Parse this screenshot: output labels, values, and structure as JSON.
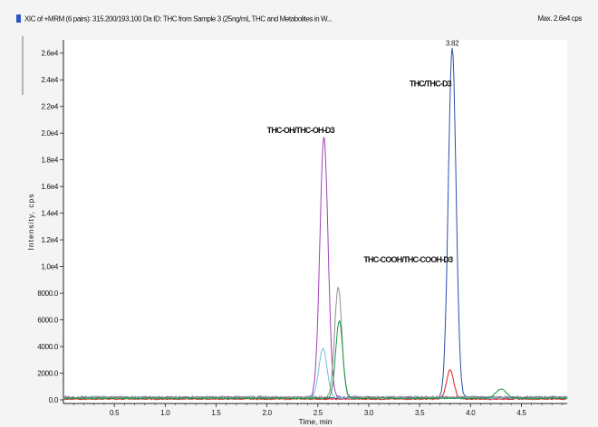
{
  "header": {
    "title": "XIC of +MRM (6 pairs): 315.200/193.100 Da ID: THC from Sample 3 (25ng/mL THC and Metabolites in W...",
    "max_label": "Max. 2.6e4 cps"
  },
  "chart_data": {
    "type": "line",
    "xlabel": "Time, min",
    "ylabel": "Intensity, cps",
    "xlim": [
      0.0,
      5.0
    ],
    "ylim": [
      0,
      27000
    ],
    "x_ticks": [
      0.5,
      1.0,
      1.5,
      2.0,
      2.5,
      3.0,
      3.5,
      4.0,
      4.5
    ],
    "x_tick_labels": [
      "0.5",
      "1.0",
      "1.5",
      "2.0",
      "2.5",
      "3.0",
      "3.5",
      "4.0",
      "4.5"
    ],
    "y_ticks": [
      0,
      2000,
      4000,
      6000,
      8000,
      10000,
      12000,
      14000,
      16000,
      18000,
      20000,
      22000,
      24000,
      26000
    ],
    "y_tick_labels": [
      "0.0",
      "2000.0",
      "4000.0",
      "6000.0",
      "8000.0",
      "1.0e4",
      "1.2e4",
      "1.4e4",
      "1.6e4",
      "1.8e4",
      "2.0e4",
      "2.2e4",
      "2.4e4",
      "2.6e4"
    ],
    "grid": false,
    "legend": false,
    "annotations": [
      {
        "text": "3.82",
        "x": 3.82,
        "y": 26300
      },
      {
        "text": "THC/THC-D3",
        "x": 3.4,
        "y": 23500
      },
      {
        "text": "THC-OH/THC-OH-D3",
        "x": 2.0,
        "y": 20000
      },
      {
        "text": "THC-COOH/THC-COOH-D3",
        "x": 2.95,
        "y": 10300
      }
    ],
    "series": [
      {
        "color": "#2a4fa8",
        "baseline": 150,
        "peaks": [
          [
            3.82,
            26300,
            0.038
          ]
        ],
        "noise": 90
      },
      {
        "color": "#e02020",
        "baseline": 60,
        "peaks": [
          [
            3.8,
            2200,
            0.035
          ]
        ],
        "noise": 40
      },
      {
        "color": "#a040b8",
        "baseline": 180,
        "peaks": [
          [
            2.56,
            19500,
            0.04
          ]
        ],
        "noise": 80
      },
      {
        "color": "#70c0d0",
        "baseline": 150,
        "peaks": [
          [
            2.55,
            3700,
            0.04
          ]
        ],
        "noise": 60
      },
      {
        "color": "#909090",
        "baseline": 200,
        "peaks": [
          [
            2.7,
            8300,
            0.035
          ]
        ],
        "noise": 90
      },
      {
        "color": "#1a9a40",
        "baseline": 120,
        "peaks": [
          [
            2.71,
            5800,
            0.035
          ],
          [
            4.3,
            700,
            0.05
          ]
        ],
        "noise": 50
      }
    ]
  }
}
